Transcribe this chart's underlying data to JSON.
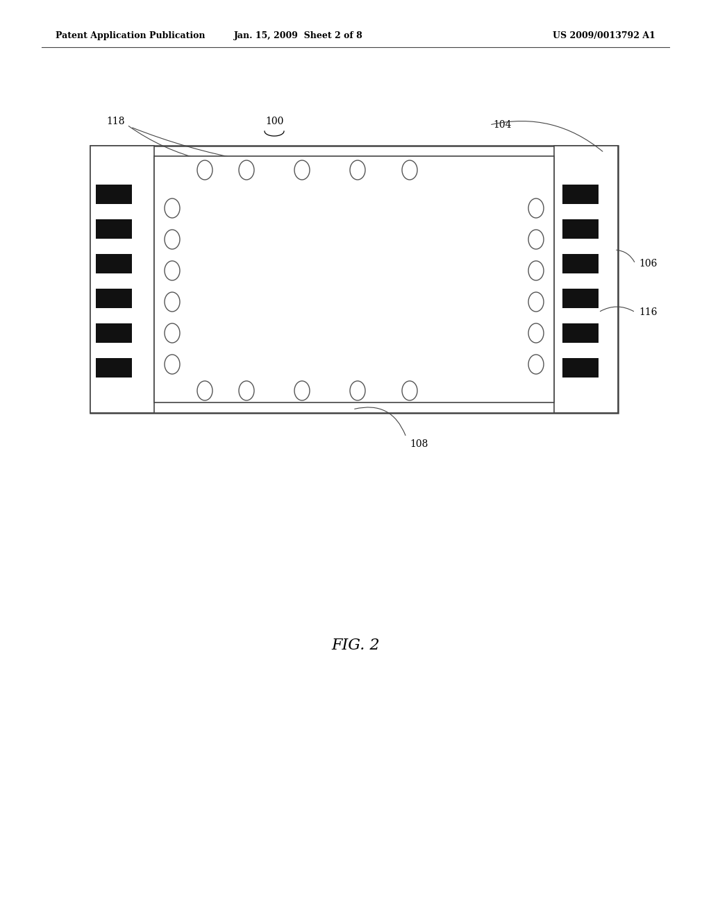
{
  "bg_color": "#ffffff",
  "header_left": "Patent Application Publication",
  "header_mid": "Jan. 15, 2009  Sheet 2 of 8",
  "header_right": "US 2009/0013792 A1",
  "fig_label": "FIG. 2",
  "label_100": "100",
  "label_104": "104",
  "label_106": "106",
  "label_108": "108",
  "label_116": "116",
  "label_118": "118",
  "line_color": "#444444",
  "bar_color": "#111111",
  "circle_edge": "#555555",
  "header_fontsize": 9,
  "label_fontsize": 10,
  "fig_fontsize": 16
}
